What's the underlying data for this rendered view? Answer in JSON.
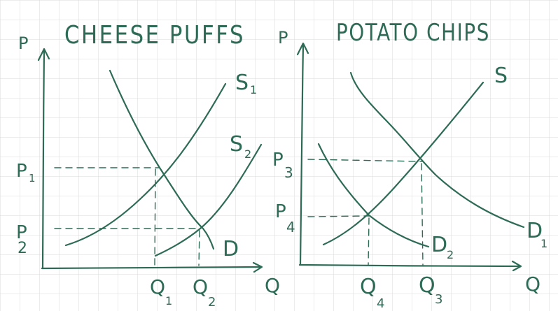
{
  "colors": {
    "ink": "#2e6b57",
    "grid": "#d9d9d9",
    "background": "#ffffff"
  },
  "left_panel": {
    "title": "CHEESE PUFFS",
    "y_axis": "P",
    "x_axis": "Q",
    "curves": {
      "supply_1": "S",
      "supply_1_sub": "1",
      "supply_2": "S",
      "supply_2_sub": "2",
      "demand": "D"
    },
    "price_labels": {
      "p1": "P",
      "p1_sub": "1",
      "p2": "P",
      "p2_sub": "2"
    },
    "quantity_labels": {
      "q1": "Q",
      "q1_sub": "1",
      "q2": "Q",
      "q2_sub": "2"
    }
  },
  "right_panel": {
    "title": "POTATO CHIPS",
    "y_axis": "P",
    "x_axis": "Q",
    "curves": {
      "supply": "S",
      "demand_1": "D",
      "demand_1_sub": "1",
      "demand_2": "D",
      "demand_2_sub": "2"
    },
    "price_labels": {
      "p3": "P",
      "p3_sub": "3",
      "p4": "P",
      "p4_sub": "4"
    },
    "quantity_labels": {
      "q3": "Q",
      "q3_sub": "3",
      "q4": "Q",
      "q4_sub": "4"
    }
  }
}
